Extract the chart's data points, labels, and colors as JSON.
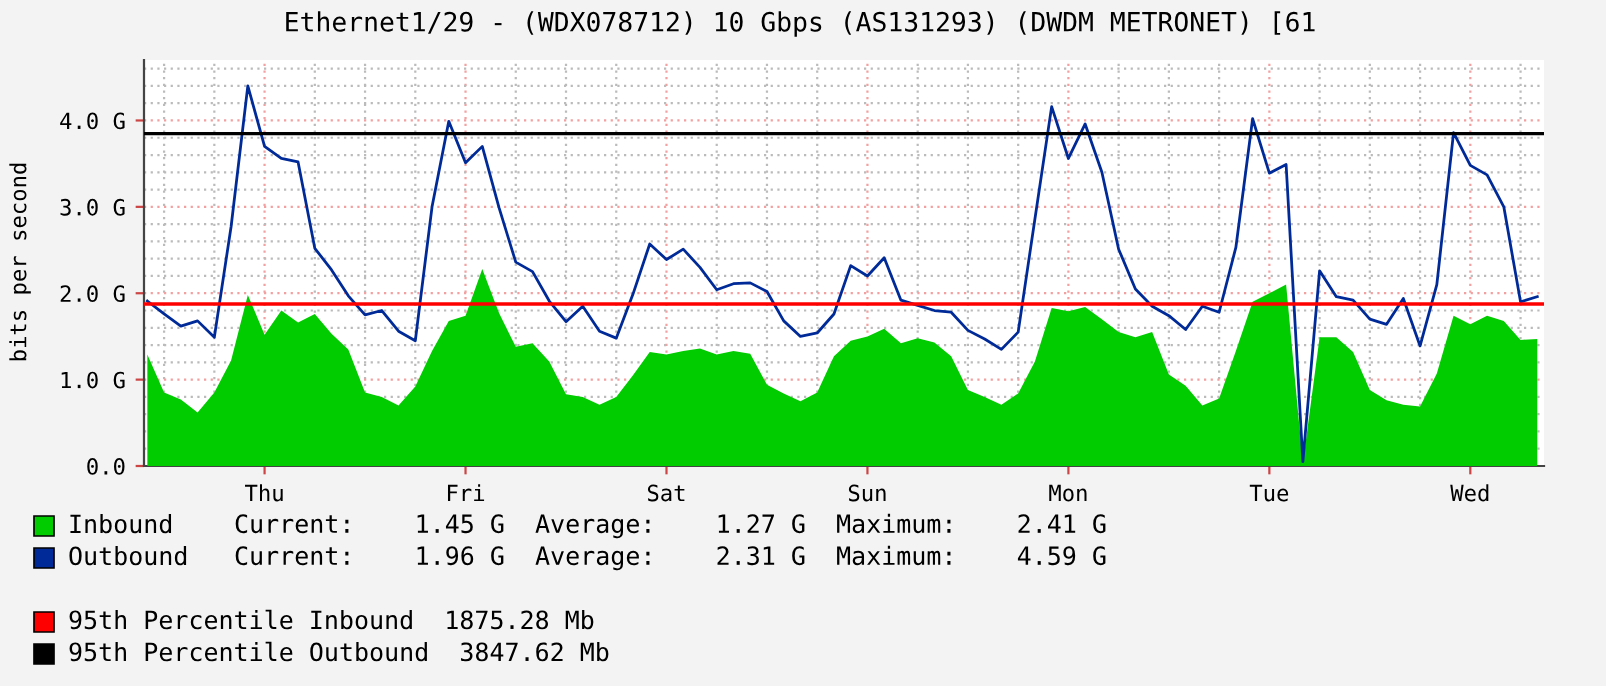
{
  "chart_data": {
    "type": "line",
    "title": "Ethernet1/29 - (WDX078712) 10 Gbps (AS131293) (DWDM METRONET) [61",
    "ylabel": "bits per second",
    "categories": [
      null,
      null,
      null,
      null,
      null,
      null,
      null,
      "Thu",
      null,
      null,
      null,
      null,
      null,
      null,
      null,
      null,
      null,
      null,
      null,
      "Fri",
      null,
      null,
      null,
      null,
      null,
      null,
      null,
      null,
      null,
      null,
      null,
      "Sat",
      null,
      null,
      null,
      null,
      null,
      null,
      null,
      null,
      null,
      null,
      null,
      "Sun",
      null,
      null,
      null,
      null,
      null,
      null,
      null,
      null,
      null,
      null,
      null,
      "Mon",
      null,
      null,
      null,
      null,
      null,
      null,
      null,
      null,
      null,
      null,
      null,
      "Tue",
      null,
      null,
      null,
      null,
      null,
      null,
      null,
      null,
      null,
      null,
      null,
      "Wed",
      null,
      null,
      null,
      null
    ],
    "ylim": [
      0,
      4.7
    ],
    "yticks": [
      {
        "value": 0,
        "label": "0.0"
      },
      {
        "value": 1,
        "label": "1.0 G"
      },
      {
        "value": 2,
        "label": "2.0 G"
      },
      {
        "value": 3,
        "label": "3.0 G"
      },
      {
        "value": 4,
        "label": "4.0 G"
      }
    ],
    "grid": true,
    "legend": "bottom",
    "series": [
      {
        "name": "Inbound",
        "type": "area",
        "color": "#00cc00",
        "values": [
          1.29,
          0.85,
          0.77,
          0.62,
          0.85,
          1.22,
          1.98,
          1.52,
          1.8,
          1.66,
          1.76,
          1.53,
          1.35,
          0.85,
          0.8,
          0.7,
          0.92,
          1.33,
          1.68,
          1.74,
          2.28,
          1.77,
          1.38,
          1.42,
          1.21,
          0.83,
          0.8,
          0.71,
          0.8,
          1.05,
          1.32,
          1.29,
          1.33,
          1.36,
          1.29,
          1.33,
          1.3,
          0.94,
          0.84,
          0.75,
          0.85,
          1.27,
          1.45,
          1.5,
          1.59,
          1.42,
          1.48,
          1.43,
          1.27,
          0.88,
          0.8,
          0.71,
          0.84,
          1.21,
          1.83,
          1.79,
          1.84,
          1.7,
          1.55,
          1.49,
          1.55,
          1.06,
          0.93,
          0.7,
          0.78,
          1.33,
          1.9,
          2.0,
          2.1,
          0.03,
          1.49,
          1.49,
          1.32,
          0.88,
          0.76,
          0.71,
          0.69,
          1.07,
          1.74,
          1.64,
          1.74,
          1.68,
          1.46,
          1.47
        ]
      },
      {
        "name": "Outbound",
        "color": "#002a97",
        "values": [
          1.91,
          1.76,
          1.62,
          1.68,
          1.49,
          2.77,
          4.4,
          3.7,
          3.56,
          3.52,
          2.52,
          2.27,
          1.97,
          1.75,
          1.8,
          1.56,
          1.45,
          3.0,
          3.99,
          3.51,
          3.7,
          2.99,
          2.36,
          2.25,
          1.91,
          1.67,
          1.85,
          1.56,
          1.48,
          1.99,
          2.57,
          2.39,
          2.51,
          2.3,
          2.04,
          2.11,
          2.12,
          2.02,
          1.68,
          1.5,
          1.54,
          1.76,
          2.32,
          2.2,
          2.41,
          1.92,
          1.86,
          1.8,
          1.78,
          1.57,
          1.47,
          1.35,
          1.55,
          2.86,
          4.16,
          3.56,
          3.96,
          3.4,
          2.51,
          2.05,
          1.85,
          1.74,
          1.58,
          1.85,
          1.78,
          2.53,
          4.02,
          3.39,
          3.49,
          0.05,
          2.26,
          1.96,
          1.92,
          1.7,
          1.64,
          1.94,
          1.39,
          2.1,
          3.86,
          3.48,
          3.37,
          3.0,
          1.9,
          1.96
        ]
      }
    ],
    "ref_lines": [
      {
        "axis": "y",
        "value": 1.87528,
        "label": "95th Percentile Inbound  1875.28 Mb",
        "color": "#ff0000"
      },
      {
        "axis": "y",
        "value": 3.84762,
        "label": "95th Percentile Outbound  3847.62 Mb",
        "color": "#000000"
      }
    ],
    "annotations": [
      "Current:    1.45 G  Average:    1.27 G  Maximum:    2.41 G",
      "Current:    1.96 G  Average:    2.31 G  Maximum:    4.59 G"
    ]
  }
}
